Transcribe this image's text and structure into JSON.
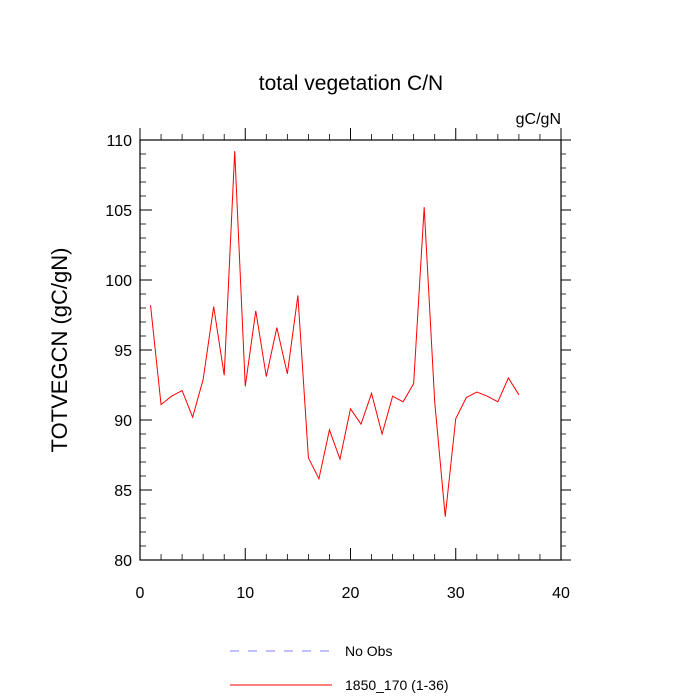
{
  "chart_data": {
    "type": "line",
    "title": "total vegetation C/N",
    "units_label": "gC/gN",
    "ylabel": "TOTVEGCN  (gC/gN)",
    "xlabel": "",
    "xlim": [
      0,
      40
    ],
    "ylim": [
      80,
      110
    ],
    "x_ticks": [
      0,
      10,
      20,
      30,
      40
    ],
    "y_ticks": [
      80,
      85,
      90,
      95,
      100,
      105,
      110
    ],
    "grid": false,
    "legend_position": "bottom",
    "series": [
      {
        "name": "No Obs",
        "color": "#7f7fff",
        "style": "dashed",
        "x": [],
        "values": []
      },
      {
        "name": "1850_170 (1-36)",
        "color": "#ff0000",
        "style": "solid",
        "x": [
          1,
          2,
          3,
          4,
          5,
          6,
          7,
          8,
          9,
          10,
          11,
          12,
          13,
          14,
          15,
          16,
          17,
          18,
          19,
          20,
          21,
          22,
          23,
          24,
          25,
          26,
          27,
          28,
          29,
          30,
          31,
          32,
          33,
          34,
          35,
          36
        ],
        "values": [
          98.2,
          91.1,
          91.7,
          92.1,
          90.2,
          92.9,
          98.1,
          93.2,
          109.2,
          92.4,
          97.8,
          93.1,
          96.6,
          93.3,
          98.9,
          87.3,
          85.8,
          89.3,
          87.2,
          90.8,
          89.7,
          91.9,
          89.0,
          91.7,
          91.3,
          92.6,
          105.2,
          91.3,
          83.1,
          90.1,
          91.6,
          92.0,
          91.7,
          91.3,
          93.0,
          91.8
        ]
      }
    ]
  }
}
